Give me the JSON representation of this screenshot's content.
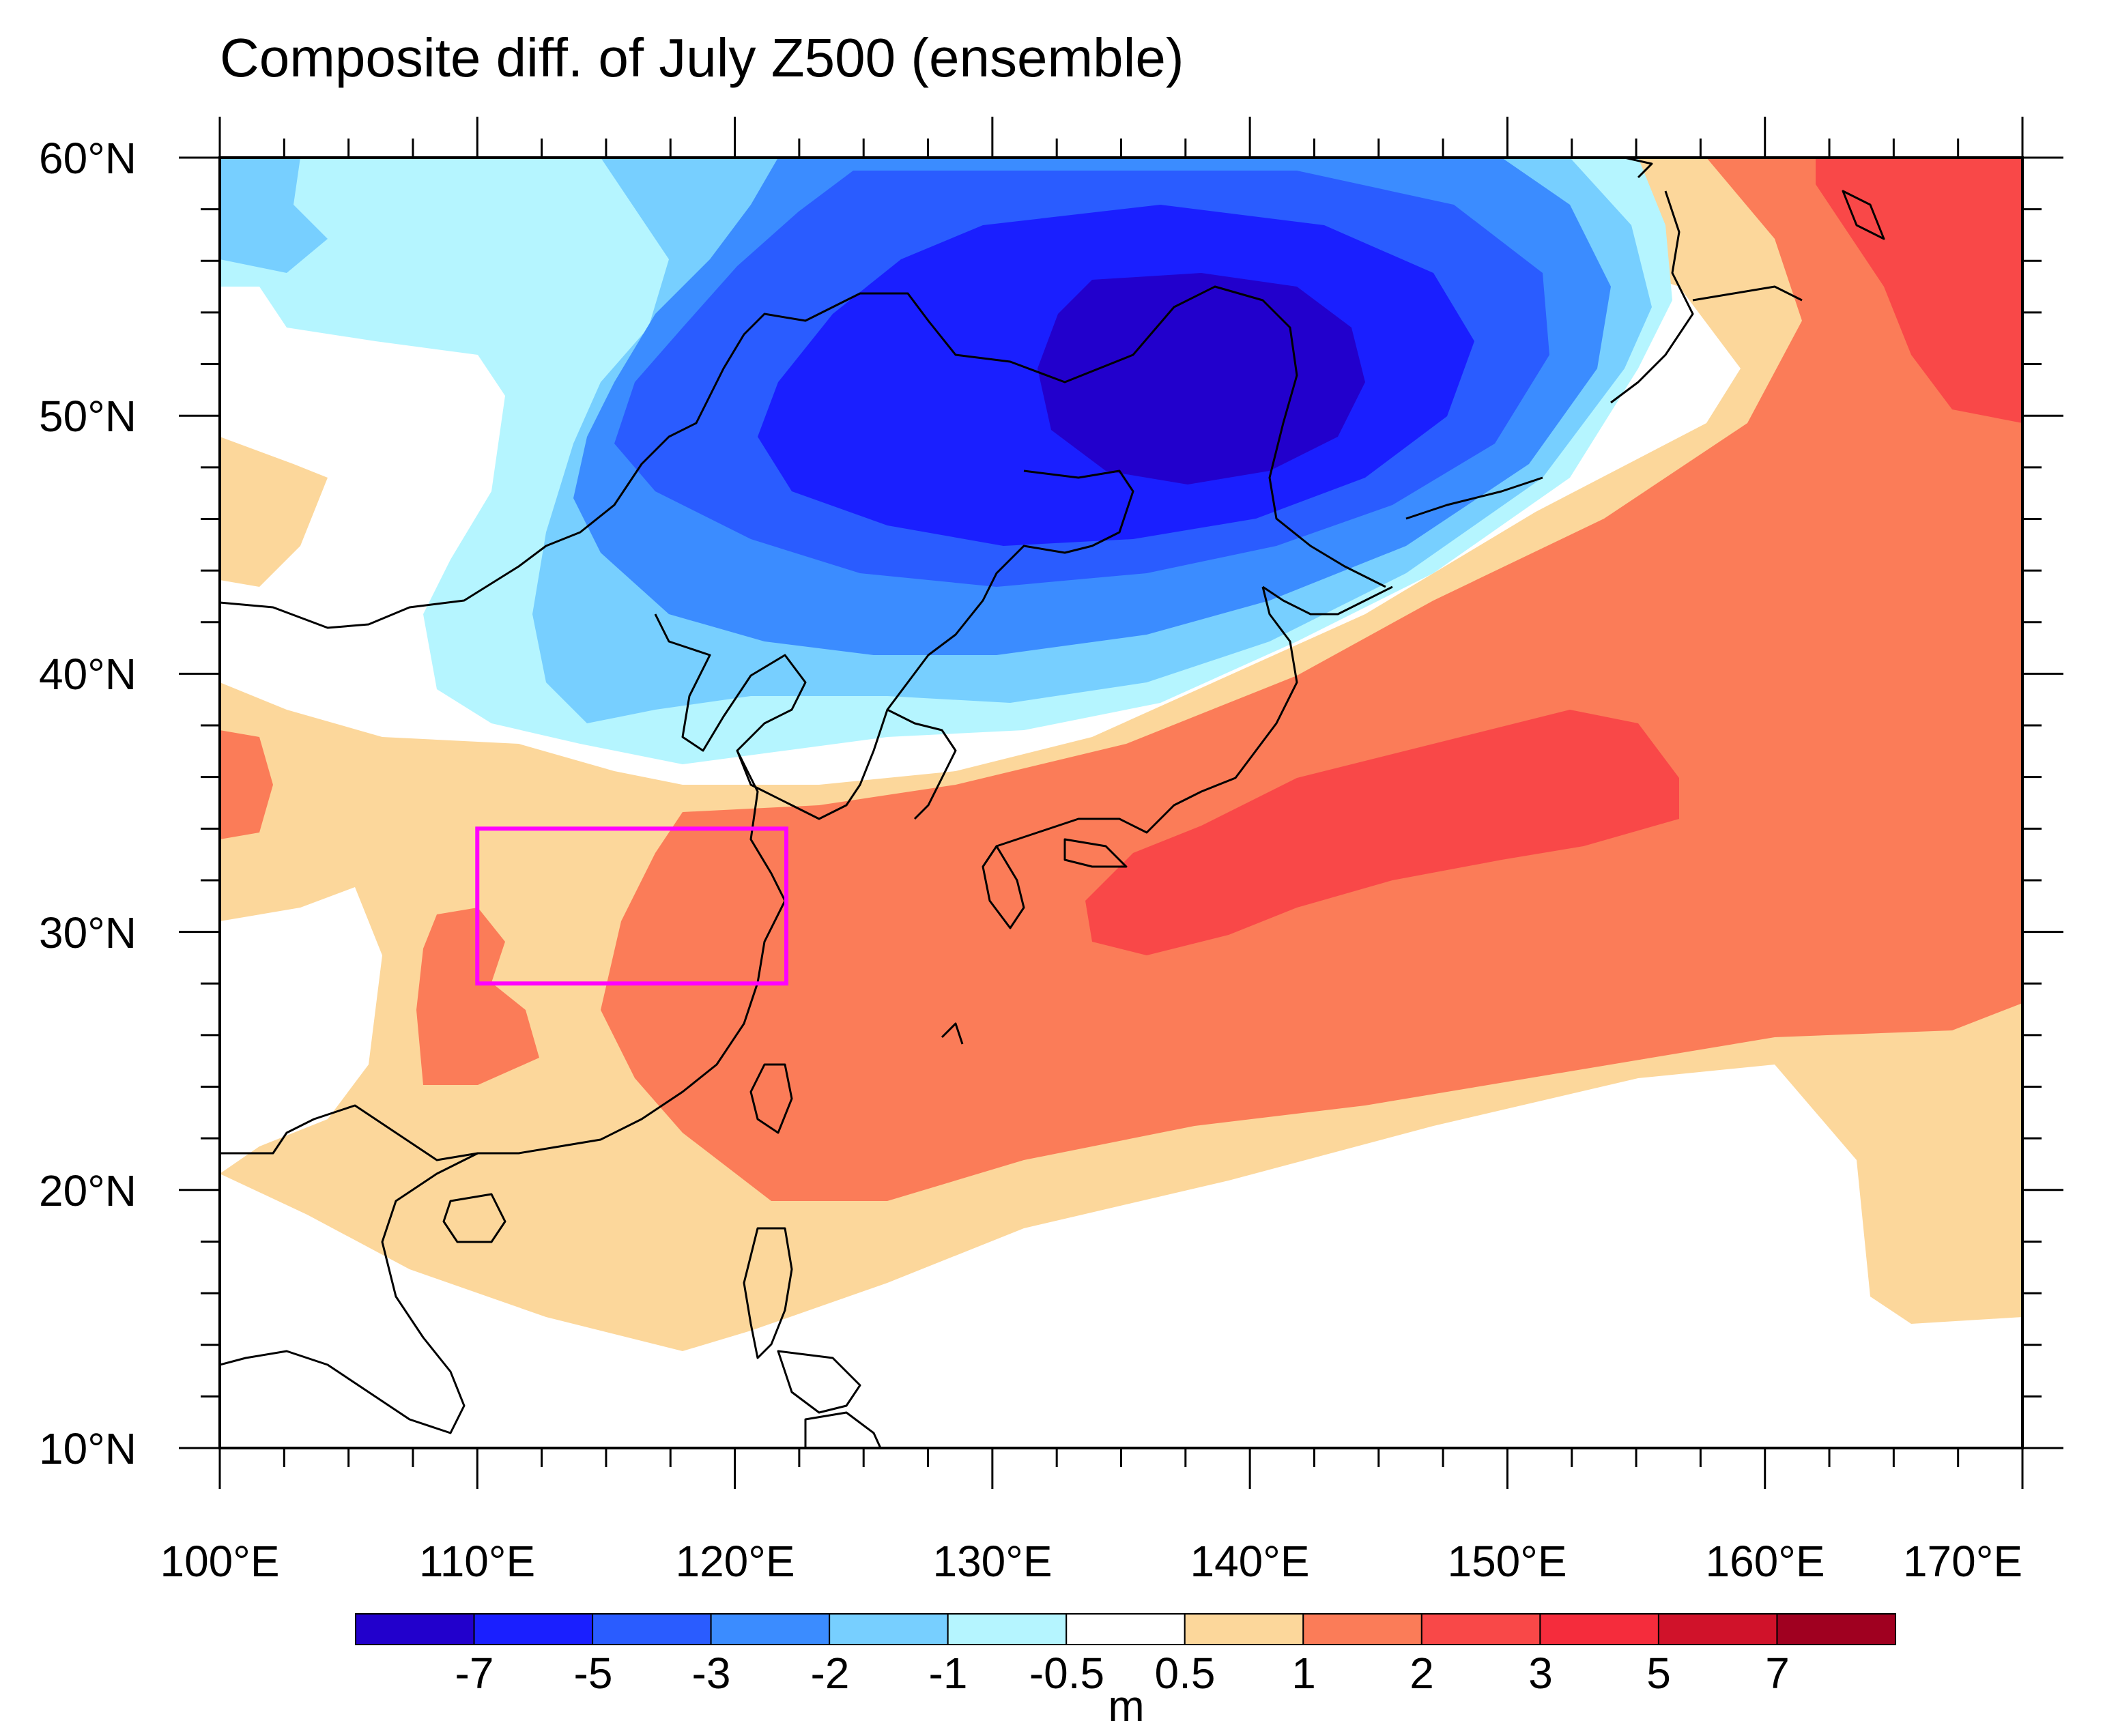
{
  "title": "Composite diff. of July Z500 (ensemble)",
  "map": {
    "projection": "cylindrical-equidistant",
    "lon_range": [
      100,
      170
    ],
    "lat_range": [
      10,
      60
    ],
    "x_tick_labels": [
      "100°E",
      "110°E",
      "120°E",
      "130°E",
      "140°E",
      "150°E",
      "160°E",
      "170°E"
    ],
    "y_tick_labels": [
      "60°N",
      "50°N",
      "40°N",
      "30°N",
      "20°N",
      "10°N"
    ],
    "highlight_box": {
      "lon": [
        110,
        122
      ],
      "lat": [
        28,
        34
      ],
      "color": "#ff00ff"
    }
  },
  "colorbar": {
    "unit": "m",
    "labels": [
      "-7",
      "-5",
      "-3",
      "-2",
      "-1",
      "-0.5",
      "0.5",
      "1",
      "2",
      "3",
      "5",
      "7"
    ],
    "colors": [
      "#2200cc",
      "#1a1fff",
      "#2a5cff",
      "#3b8cff",
      "#77cfff",
      "#b5f5ff",
      "#ffffff",
      "#fcd79b",
      "#fb7c58",
      "#f94848",
      "#f52c3c",
      "#d0122a",
      "#a00020"
    ]
  },
  "chart_data": {
    "type": "heatmap",
    "title": "Composite diff. of July Z500 (ensemble)",
    "variable": "500 hPa geopotential height difference",
    "unit": "m",
    "x": {
      "label": "Longitude",
      "range": [
        100,
        170
      ],
      "ticks": [
        "100°E",
        "110°E",
        "120°E",
        "130°E",
        "140°E",
        "150°E",
        "160°E",
        "170°E"
      ]
    },
    "y": {
      "label": "Latitude",
      "range": [
        10,
        60
      ],
      "ticks": [
        "60°N",
        "50°N",
        "40°N",
        "30°N",
        "20°N",
        "10°N"
      ]
    },
    "levels": [
      -7,
      -5,
      -3,
      -2,
      -1,
      -0.5,
      0.5,
      1,
      2,
      3,
      5,
      7
    ],
    "features": [
      {
        "name": "negative center",
        "lon": 138,
        "lat": 51,
        "value_range": "< -7"
      },
      {
        "name": "positive band",
        "lon_range": [
          120,
          170
        ],
        "lat_range": [
          22,
          38
        ],
        "value_range": "1 to 3"
      },
      {
        "name": "positive center",
        "lon": 150,
        "lat": 34,
        "value_range": "3 to 5"
      },
      {
        "name": "positive northeast corner",
        "lon": 165,
        "lat": 57,
        "value_range": "3 to 5"
      }
    ]
  }
}
